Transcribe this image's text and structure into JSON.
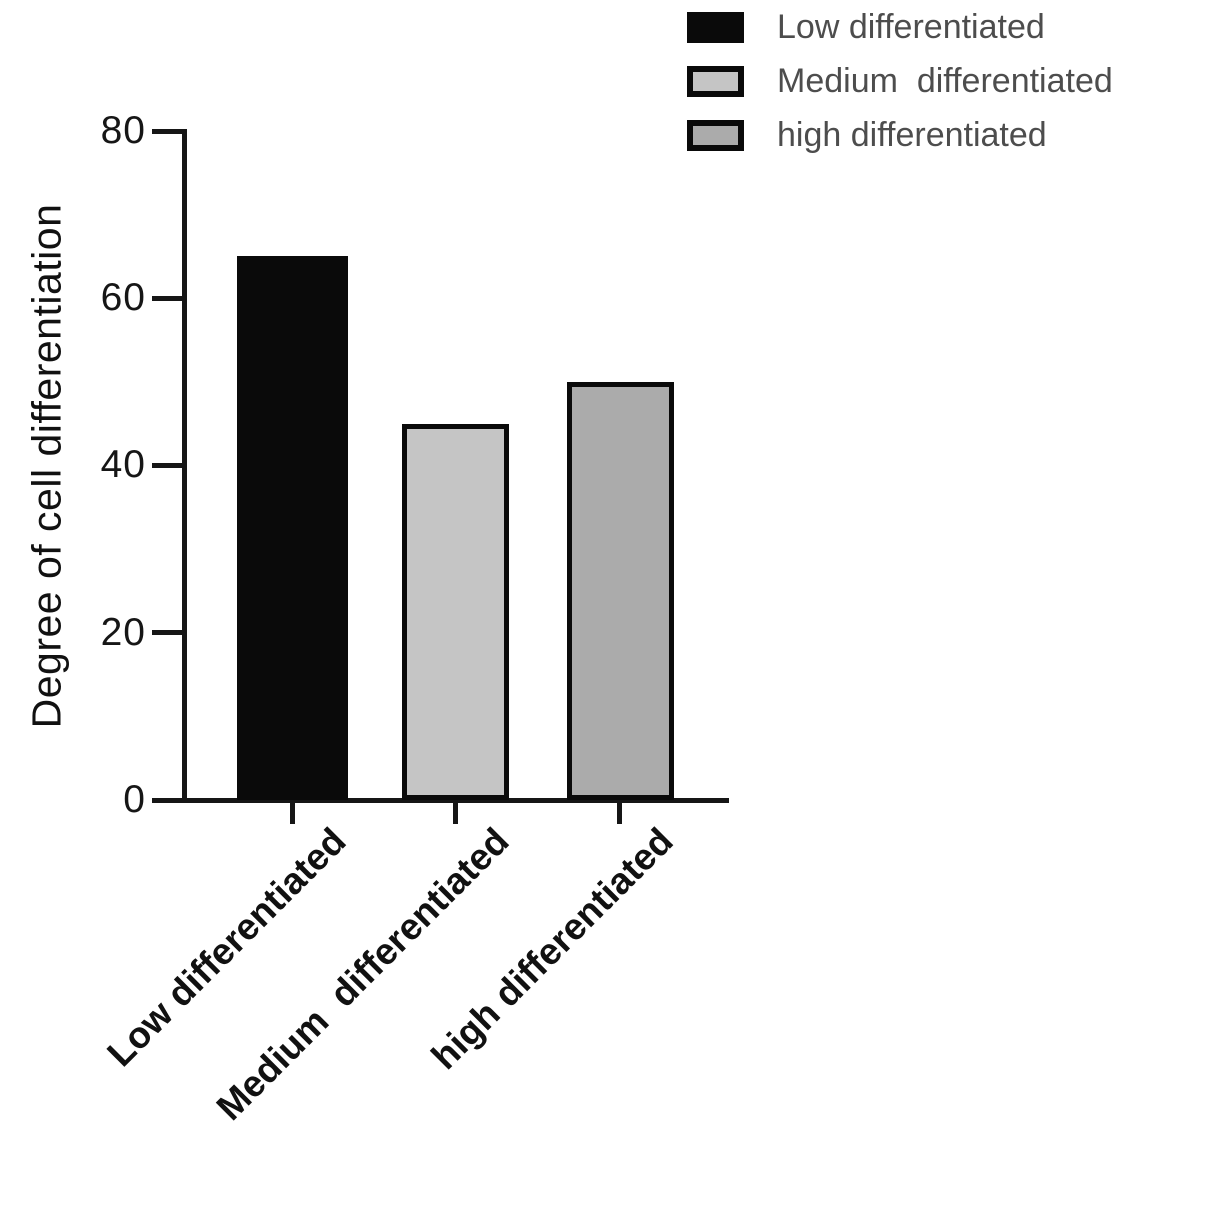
{
  "chart_data": {
    "type": "bar",
    "categories": [
      "Low differentiated",
      "Medium  differentiated",
      "high differentiated"
    ],
    "values": [
      65,
      45,
      50
    ],
    "title": "",
    "xlabel": "",
    "ylabel": "Degree of cell differentiation",
    "ylim": [
      0,
      80
    ],
    "yticks": [
      0,
      20,
      40,
      60,
      80
    ],
    "grid": false,
    "legend_position": "top-right",
    "bar_colors": [
      "#0a0a0a",
      "#c5c5c5",
      "#ababab"
    ],
    "bar_border_color": "#0a0a0a",
    "legend": [
      {
        "label": "Low differentiated",
        "fill": "#0a0a0a",
        "border": "#0a0a0a"
      },
      {
        "label": "Medium  differentiated",
        "fill": "#c5c5c5",
        "border": "#0a0a0a"
      },
      {
        "label": "high differentiated",
        "fill": "#ababab",
        "border": "#0a0a0a"
      }
    ]
  },
  "colors": {
    "background": "#ffffff",
    "axis": "#161616",
    "tick_label_text": "#161616",
    "axis_title_text": "#111111",
    "category_label_text": "#111111",
    "legend_text": "#4d4d4d"
  }
}
